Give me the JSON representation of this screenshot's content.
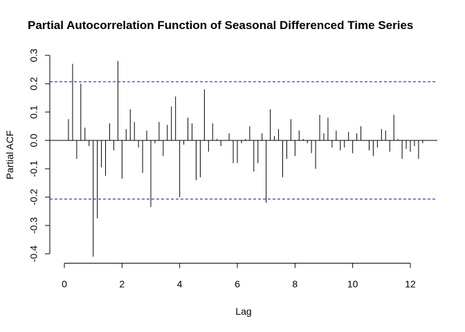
{
  "chart_data": {
    "type": "pacf",
    "title": "Partial Autocorrelation Function of Seasonal Differenced Time Series",
    "x_label": "Lag",
    "y_label": "Partial ACF",
    "x": [
      0.143,
      0.286,
      0.429,
      0.571,
      0.714,
      0.857,
      1,
      1.143,
      1.286,
      1.429,
      1.571,
      1.714,
      1.857,
      2,
      2.143,
      2.286,
      2.429,
      2.571,
      2.714,
      2.857,
      3,
      3.143,
      3.286,
      3.429,
      3.571,
      3.714,
      3.857,
      4,
      4.143,
      4.286,
      4.429,
      4.571,
      4.714,
      4.857,
      5,
      5.143,
      5.286,
      5.429,
      5.571,
      5.714,
      5.857,
      6,
      6.143,
      6.286,
      6.429,
      6.571,
      6.714,
      6.857,
      7,
      7.143,
      7.286,
      7.429,
      7.571,
      7.714,
      7.857,
      8,
      8.143,
      8.286,
      8.429,
      8.571,
      8.714,
      8.857,
      9,
      9.143,
      9.286,
      9.429,
      9.571,
      9.714,
      9.857,
      10,
      10.143,
      10.286,
      10.429,
      10.571,
      10.714,
      10.857,
      11,
      11.143,
      11.286,
      11.429,
      11.571,
      11.714,
      11.857,
      12,
      12.143,
      12.286,
      12.429
    ],
    "values": [
      0.075,
      0.27,
      -0.065,
      0.2,
      0.045,
      -0.02,
      -0.41,
      -0.275,
      -0.095,
      -0.125,
      0.06,
      -0.035,
      0.28,
      -0.135,
      0.04,
      0.11,
      0.065,
      -0.025,
      -0.115,
      0.035,
      -0.235,
      -0.01,
      0.065,
      -0.055,
      0.055,
      0.12,
      0.155,
      -0.2,
      -0.015,
      0.08,
      0.06,
      -0.14,
      -0.13,
      0.18,
      -0.04,
      0.06,
      0.005,
      -0.02,
      0,
      0.025,
      -0.08,
      -0.08,
      -0.01,
      0.005,
      0.05,
      -0.11,
      -0.08,
      0.025,
      -0.22,
      0.11,
      0.015,
      0.04,
      -0.13,
      -0.065,
      0.075,
      -0.055,
      0.035,
      0.005,
      -0.01,
      -0.045,
      -0.1,
      0.09,
      0.025,
      0.08,
      -0.025,
      0.035,
      -0.035,
      -0.025,
      0.03,
      -0.045,
      0.025,
      0.05,
      0,
      -0.035,
      -0.055,
      -0.025,
      0.04,
      0.035,
      -0.04,
      0.09,
      0.005,
      -0.065,
      -0.03,
      -0.04,
      -0.02,
      -0.065,
      -0.01
    ],
    "color": "#000000",
    "confidence_bounds": [
      0.207,
      -0.207
    ],
    "confidence_color": "#0000cc",
    "xlim": [
      -0.504,
      12.936
    ],
    "ylim": [
      -0.433,
      0.333
    ],
    "xticks": [
      0,
      2,
      4,
      6,
      8,
      10,
      12
    ],
    "yticks": [
      -0.4,
      -0.3,
      -0.2,
      -0.1,
      {
        "value": 0,
        "label": "0.0"
      },
      0.1,
      0.2,
      0.3
    ]
  }
}
